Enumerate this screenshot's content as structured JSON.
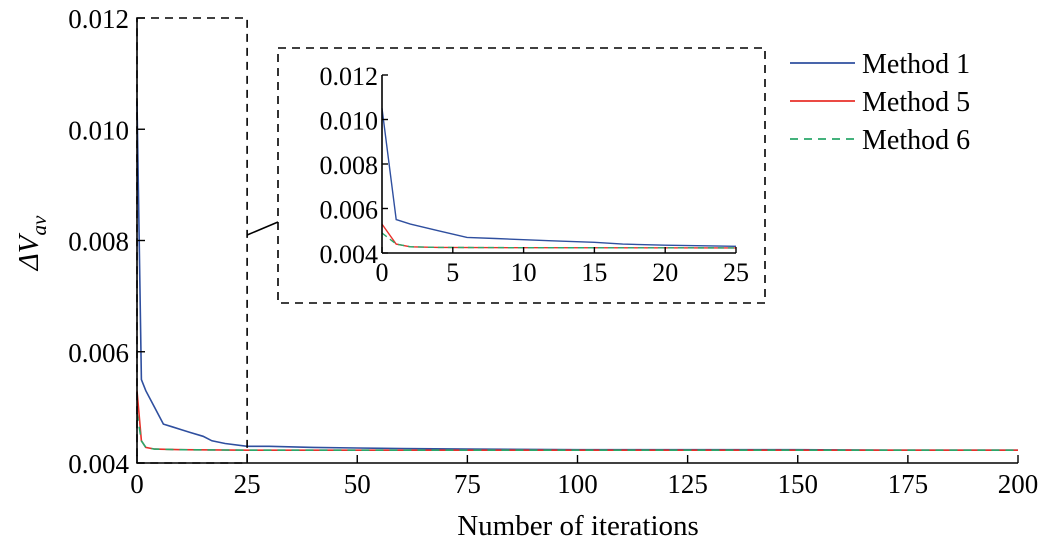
{
  "chart_data": [
    {
      "type": "line",
      "xlabel": "Number of iterations",
      "ylabel_main": "ΔV",
      "ylabel_sub": "av",
      "xlim": [
        0,
        200
      ],
      "ylim": [
        0.004,
        0.012
      ],
      "xticks": [
        0,
        25,
        50,
        75,
        100,
        125,
        150,
        175,
        200
      ],
      "yticks": [
        0.004,
        0.006,
        0.008,
        0.01,
        0.012
      ],
      "ytick_labels": [
        "0.004",
        "0.006",
        "0.008",
        "0.010",
        "0.012"
      ],
      "series": [
        {
          "name": "Method 1",
          "color": "#2f4f9f",
          "dash": "solid",
          "x": [
            0,
            1,
            2,
            4,
            6,
            8,
            10,
            12,
            15,
            17,
            20,
            25,
            30,
            40,
            50,
            60,
            75,
            100,
            125,
            150,
            175,
            200
          ],
          "y": [
            0.0105,
            0.0055,
            0.0053,
            0.005,
            0.0047,
            0.00465,
            0.0046,
            0.00455,
            0.00448,
            0.0044,
            0.00435,
            0.0043,
            0.0043,
            0.00428,
            0.00427,
            0.00426,
            0.00425,
            0.00424,
            0.00424,
            0.00424,
            0.00423,
            0.00423
          ]
        },
        {
          "name": "Method 5",
          "color": "#e8302a",
          "dash": "solid",
          "x": [
            0,
            1,
            2,
            4,
            10,
            25,
            50,
            100,
            150,
            200
          ],
          "y": [
            0.0053,
            0.0044,
            0.00428,
            0.00425,
            0.00424,
            0.00423,
            0.00423,
            0.00423,
            0.00423,
            0.00423
          ]
        },
        {
          "name": "Method 6",
          "color": "#2aa86a",
          "dash": "dashed",
          "x": [
            0,
            1,
            2,
            4,
            10,
            25,
            50,
            100,
            150,
            200
          ],
          "y": [
            0.0049,
            0.0044,
            0.00428,
            0.00425,
            0.00424,
            0.00423,
            0.00423,
            0.00423,
            0.00423,
            0.00423
          ]
        }
      ],
      "legend": "top-right",
      "grid": false
    },
    {
      "type": "line",
      "role": "inset zoom",
      "xlim": [
        0,
        25
      ],
      "ylim": [
        0.004,
        0.012
      ],
      "xticks": [
        0,
        5,
        10,
        15,
        20,
        25
      ],
      "yticks": [
        0.004,
        0.006,
        0.008,
        0.01,
        0.012
      ],
      "ytick_labels": [
        "0.004",
        "0.006",
        "0.008",
        "0.010",
        "0.012"
      ]
    }
  ]
}
